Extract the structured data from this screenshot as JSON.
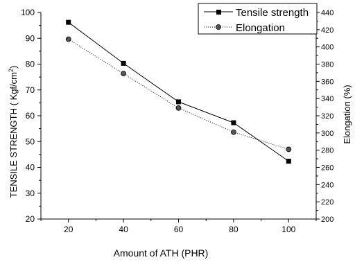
{
  "chart_data": {
    "type": "line",
    "title": "",
    "xlabel": "Amount of ATH (PHR)",
    "ylabel_left": "TENSILE STRENGTH (   Kgf/cm",
    "ylabel_left_sup": "2",
    "ylabel_left_close": ")",
    "ylabel_right": "Elongation (%)",
    "xlim": [
      10,
      110
    ],
    "ylim_left": [
      20,
      100
    ],
    "ylim_right": [
      200,
      440
    ],
    "x_ticks": [
      20,
      40,
      60,
      80,
      100
    ],
    "y_left_ticks": [
      20,
      30,
      40,
      50,
      60,
      70,
      80,
      90,
      100
    ],
    "y_right_ticks": [
      200,
      220,
      240,
      260,
      280,
      300,
      320,
      340,
      360,
      380,
      400,
      420,
      440
    ],
    "x": [
      20,
      40,
      60,
      80,
      100
    ],
    "series": [
      {
        "name": "Tensile strength",
        "axis": "left",
        "marker": "square",
        "line": "solid",
        "values": [
          96.2,
          80.3,
          65.4,
          57.3,
          42.4
        ]
      },
      {
        "name": "Elongation",
        "axis": "right",
        "marker": "circle",
        "line": "dotted",
        "values": [
          409,
          369,
          329,
          301,
          281
        ]
      }
    ],
    "legend_position": "top-right",
    "grid": false
  }
}
